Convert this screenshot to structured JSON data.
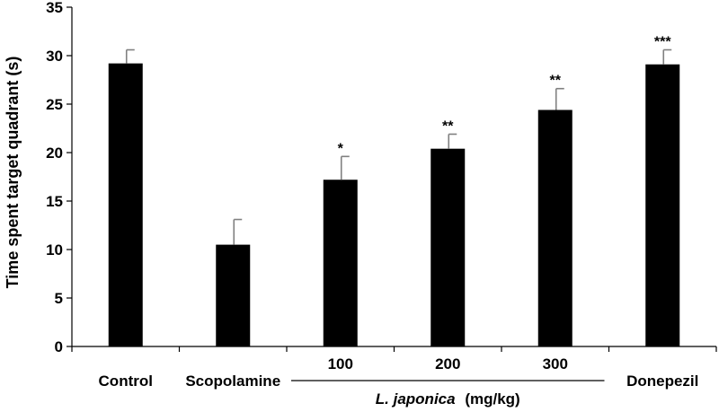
{
  "chart_data": {
    "type": "bar",
    "categories": [
      "Control",
      "Scopolamine",
      "100",
      "200",
      "300",
      "Donepezil"
    ],
    "values": [
      29.2,
      10.5,
      17.2,
      20.4,
      24.4,
      29.1
    ],
    "errors": [
      1.4,
      2.6,
      2.4,
      1.5,
      2.2,
      1.5
    ],
    "significance": [
      "",
      "",
      "*",
      "**",
      "**",
      "***"
    ],
    "ylabel": "Time spent target quadrant (s)",
    "ylim": [
      0,
      35
    ],
    "yticks": [
      "0",
      "5",
      "10",
      "15",
      "20",
      "25",
      "30",
      "35"
    ],
    "group": {
      "label_italic": "L. japonica",
      "label_unit": "(mg/kg)"
    },
    "bar_color": "#000000",
    "error_color": "#808080",
    "grid": false
  }
}
